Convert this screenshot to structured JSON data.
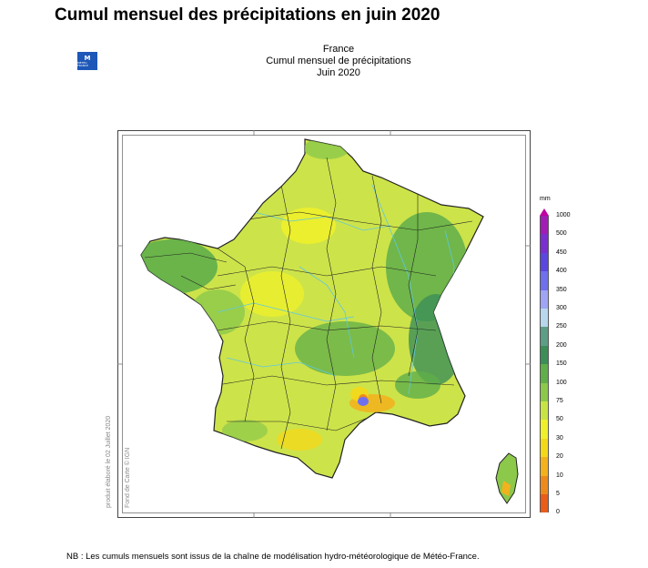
{
  "page_title": "Cumul mensuel des précipitations en juin 2020",
  "logo": {
    "mark": "M",
    "text": "MÉTÉO FRANCE"
  },
  "subtitle": [
    "France",
    "Cumul mensuel de précipitations",
    "Juin 2020"
  ],
  "side_texts": {
    "produced": "produit élaboré le 02 Juillet 2020",
    "basemap": "Fond de Carte © IGN"
  },
  "legend": {
    "unit": "mm",
    "ticks": [
      "1000",
      "500",
      "450",
      "400",
      "350",
      "300",
      "250",
      "200",
      "150",
      "100",
      "75",
      "50",
      "30",
      "20",
      "10",
      "5",
      "0"
    ],
    "colors": [
      "#a21db5",
      "#7a2fd0",
      "#5a47e0",
      "#6f70ee",
      "#9fa5f4",
      "#b8d6ec",
      "#5c9e86",
      "#3c8e57",
      "#5fae4a",
      "#8cc84a",
      "#c8e444",
      "#eef02a",
      "#f4d81a",
      "#f2b21e",
      "#ee8a1c",
      "#ea5c1a"
    ]
  },
  "footnote": "NB : Les cumuls mensuels sont issus de la chaîne de modélisation hydro-météorologique de Météo-France."
}
